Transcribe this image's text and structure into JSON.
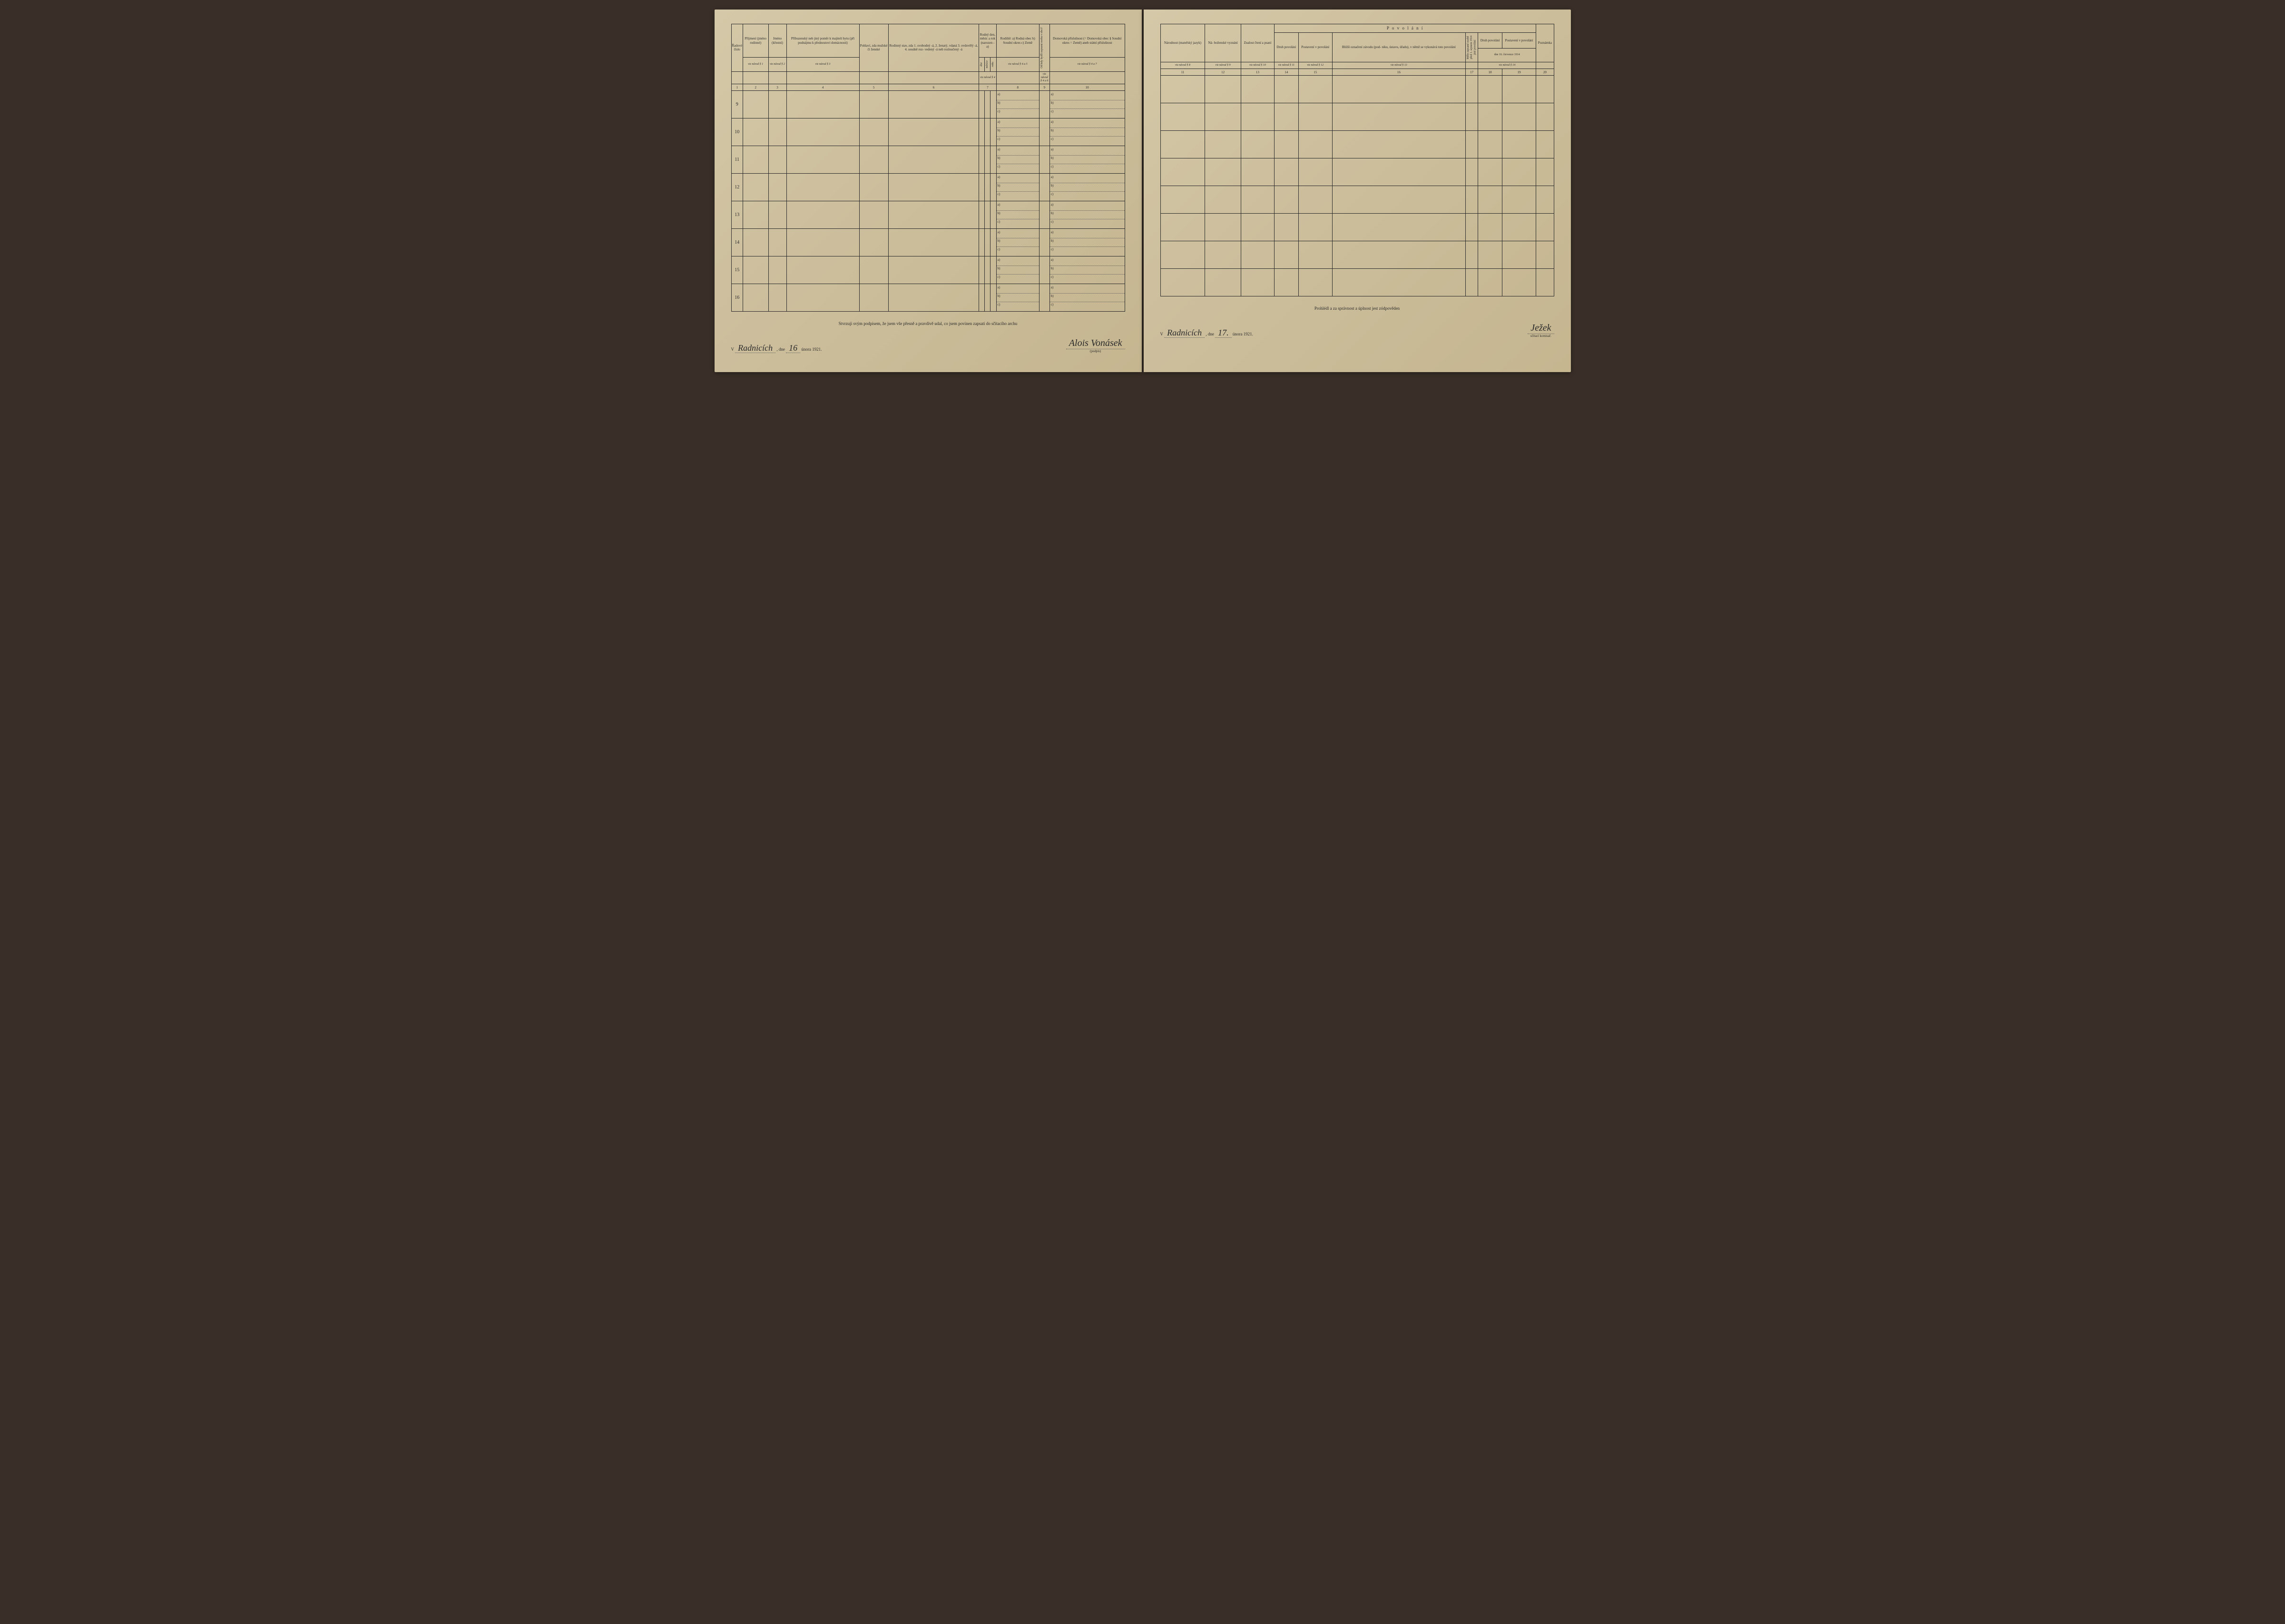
{
  "rows": [
    "9",
    "10",
    "11",
    "12",
    "13",
    "14",
    "15",
    "16"
  ],
  "sublabels": [
    "a)",
    "b)",
    "c)"
  ],
  "left": {
    "headers": {
      "col1": "Řadové\nčíslo",
      "col2": "Příjmení\n(jméno rodinné)",
      "col3": "Jméno\n(křestní)",
      "col4": "Příbuzenský\nneb jiný poměr\nk majiteli bytu\n(při podnájmu\nk přednostovi\ndomácnosti)",
      "col5": "Pohlaví,\nzda\nmužské\nči\nženské",
      "col6": "Rodinný\nstav, zda\n1. svobodný -á,\n2. ženatý, vdaná\n3. ovdovělý -á,\n4. soudně roz-\nvedený -á neb\nrozloučený -á",
      "col7": "Rodný den,\nměsíc a rok\n(narozen -a)",
      "col7a": "dne",
      "col7b": "měsíce",
      "col7c": "roku",
      "col8": "Rodiště:\na) Rodná obec\nb) Soudní okres\nc) Země",
      "col9": "Od kdy bydlí zapsaná\nosoba v obci?",
      "col10": "Domovská\npříslušnost\n(= Domovská obec\n§ Soudní okres\n= Země)\naneb\nstátní\npříslušnost"
    },
    "refs": {
      "r2": "viz návod § 1",
      "r3": "viz návod § 2",
      "r4": "viz návod § 3",
      "r7": "viz návod § 4",
      "r8": "viz návod § 4 a 5",
      "r9": "viz návod\n§ 4 a 6",
      "r10": "viz návod § 4 a 7"
    },
    "nums": [
      "1",
      "2",
      "3",
      "4",
      "5",
      "6",
      "7",
      "8",
      "9",
      "10"
    ],
    "footer": {
      "affirm": "Stvrzuji svým podpisem, že jsem vše přesně a pravdivě udal, co jsem povinen zapsati do sčítacího archu",
      "place_prefix": "V",
      "place": "Radnicích",
      "date_prefix": ", dne",
      "day": "16",
      "month_year": "února 1921.",
      "signature": "Alois Vonásek",
      "sig_label": "(podpis)"
    }
  },
  "right": {
    "headers": {
      "col11": "Národnost\n(mateřský\njazyk)",
      "col12": "Ná-\nboženské\nvyznání",
      "col13": "Znalost\nčtení\na psaní",
      "occupation": "P o v o l á n í",
      "col14": "Druh povolání",
      "col15": "Postavení\nv povolání",
      "col16": "Bližší označení\nzávodu (pod-\nniku, ústavu,\núřadu), v němž\nse vykonává\ntoto povolání",
      "col17": "",
      "col18": "Druh povolání",
      "col19": "Postavení\nv povolání",
      "col18_19_sub": "dne 16. července 1914",
      "col20": "Poznámka"
    },
    "refs": {
      "r11": "viz návod § 8",
      "r12": "viz návod § 9",
      "r13": "viz návod § 10",
      "r14": "viz návod § 11",
      "r15": "viz návod § 12",
      "r16": "viz návod § 13",
      "r18": "viz návod § 14"
    },
    "nums": [
      "11",
      "12",
      "13",
      "14",
      "15",
      "16",
      "17",
      "18",
      "19",
      "20"
    ],
    "footer": {
      "affirm": "Prohlédl a za správnost a úplnost jest zódpověden",
      "place_prefix": "V",
      "place": "Radnicích",
      "date_prefix": ", dne",
      "day": "17.",
      "month_year": "února 1921.",
      "signature": "Ježek",
      "sig_label": "sčítací komisař."
    }
  }
}
